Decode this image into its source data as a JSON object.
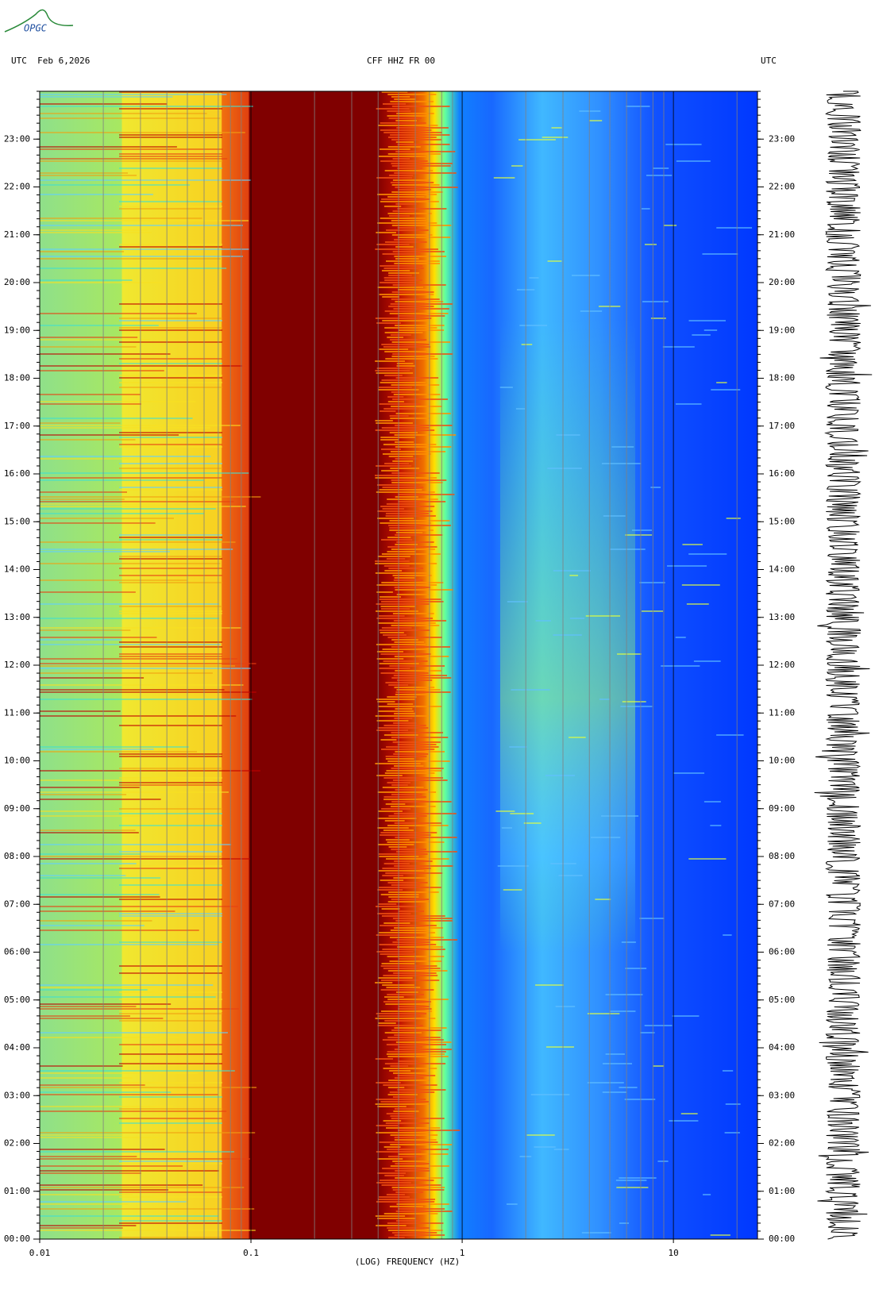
{
  "chart_data": {
    "type": "spectrogram",
    "logo": "OPGC",
    "title": "CFF HHZ FR 00",
    "date_label": "UTC  Feb 6,2026",
    "right_label": "UTC",
    "xlabel": "(LOG) FREQUENCY (HZ)",
    "xscale": "log",
    "xlim": [
      0.01,
      25
    ],
    "xticks": [
      0.01,
      0.1,
      1,
      10
    ],
    "ylim": [
      0,
      24
    ],
    "yticks": [
      {
        "value": 0,
        "label": "00:00"
      },
      {
        "value": 1,
        "label": "01:00"
      },
      {
        "value": 2,
        "label": "02:00"
      },
      {
        "value": 3,
        "label": "03:00"
      },
      {
        "value": 4,
        "label": "04:00"
      },
      {
        "value": 5,
        "label": "05:00"
      },
      {
        "value": 6,
        "label": "06:00"
      },
      {
        "value": 7,
        "label": "07:00"
      },
      {
        "value": 8,
        "label": "08:00"
      },
      {
        "value": 9,
        "label": "09:00"
      },
      {
        "value": 10,
        "label": "10:00"
      },
      {
        "value": 11,
        "label": "11:00"
      },
      {
        "value": 12,
        "label": "12:00"
      },
      {
        "value": 13,
        "label": "13:00"
      },
      {
        "value": 14,
        "label": "14:00"
      },
      {
        "value": 15,
        "label": "15:00"
      },
      {
        "value": 16,
        "label": "16:00"
      },
      {
        "value": 17,
        "label": "17:00"
      },
      {
        "value": 18,
        "label": "18:00"
      },
      {
        "value": 19,
        "label": "19:00"
      },
      {
        "value": 20,
        "label": "20:00"
      },
      {
        "value": 21,
        "label": "21:00"
      },
      {
        "value": 22,
        "label": "22:00"
      },
      {
        "value": 23,
        "label": "23:00"
      }
    ]
  }
}
